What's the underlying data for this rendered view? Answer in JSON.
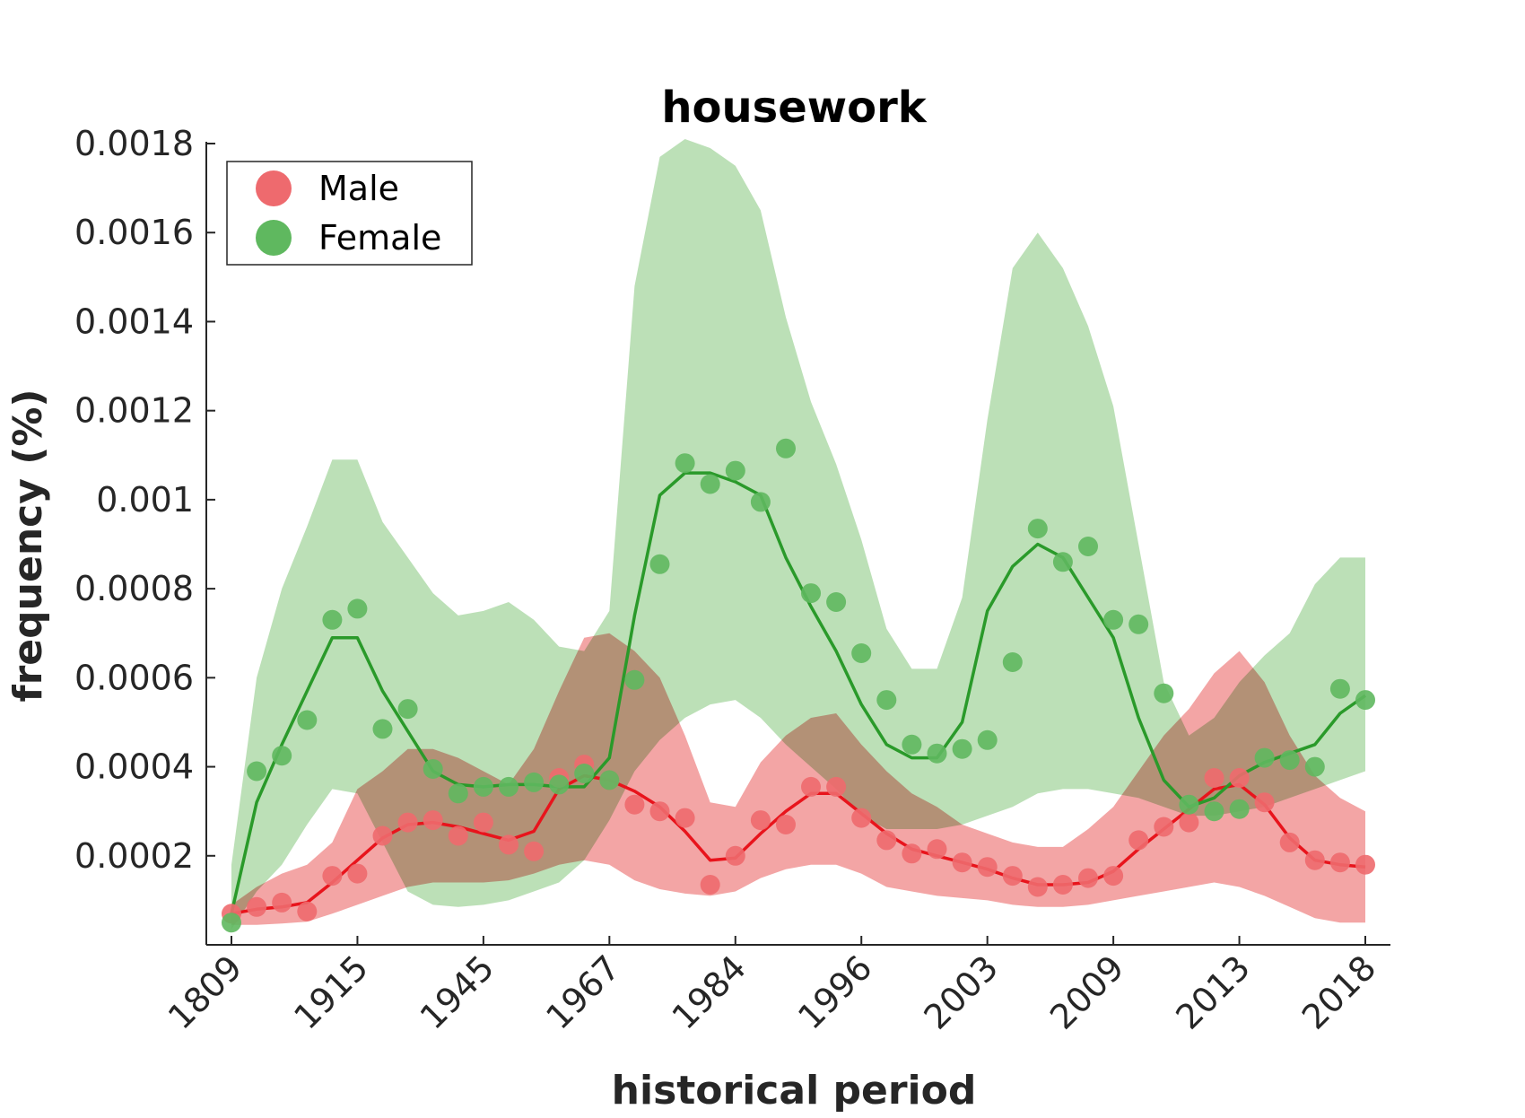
{
  "chart_data": {
    "type": "line",
    "title": "housework",
    "xlabel": "historical period",
    "ylabel": "frequency (%)",
    "ylim": [
      0,
      0.0018
    ],
    "y_ticks": [
      "0.0002",
      "0.0004",
      "0.0006",
      "0.0008",
      "0.001",
      "0.0012",
      "0.0014",
      "0.0016",
      "0.0018"
    ],
    "y_tick_values": [
      0.0002,
      0.0004,
      0.0006,
      0.0008,
      0.001,
      0.0012,
      0.0014,
      0.0016,
      0.0018
    ],
    "x_tick_labels": [
      "1809",
      "1915",
      "1945",
      "1967",
      "1984",
      "1996",
      "2003",
      "2009",
      "2013",
      "2018"
    ],
    "x_tick_indices": [
      0,
      5,
      10,
      15,
      20,
      25,
      30,
      35,
      40,
      45
    ],
    "n_points": 46,
    "legend_position": "top-left",
    "series": [
      {
        "name": "Male",
        "color": "#e8141c",
        "marker_color": "#ee6a6e",
        "band_color": "#f19999",
        "points": [
          7e-05,
          8.5e-05,
          9.5e-05,
          7.5e-05,
          0.000155,
          0.00016,
          0.000245,
          0.000275,
          0.00028,
          0.000245,
          0.000275,
          0.000225,
          0.00021,
          0.000375,
          0.000405,
          0.00037,
          0.000315,
          0.0003,
          0.000285,
          0.000135,
          0.0002,
          0.00028,
          0.00027,
          0.000355,
          0.000355,
          0.000285,
          0.000235,
          0.000205,
          0.000215,
          0.000185,
          0.000175,
          0.000155,
          0.00013,
          0.000135,
          0.00015,
          0.000155,
          0.000235,
          0.000265,
          0.000275,
          0.000375,
          0.000375,
          0.00032,
          0.00023,
          0.00019,
          0.000185,
          0.00018
        ],
        "fit": [
          7e-05,
          8e-05,
          8.5e-05,
          9.5e-05,
          0.00014,
          0.00019,
          0.00024,
          0.00027,
          0.000275,
          0.000265,
          0.00025,
          0.000235,
          0.000255,
          0.00035,
          0.00038,
          0.00037,
          0.000345,
          0.00031,
          0.000255,
          0.00019,
          0.000195,
          0.00025,
          0.0003,
          0.00034,
          0.00034,
          0.000295,
          0.00025,
          0.000215,
          0.0002,
          0.000185,
          0.00017,
          0.00015,
          0.000135,
          0.000135,
          0.00014,
          0.000165,
          0.000215,
          0.00026,
          0.000305,
          0.00035,
          0.00036,
          0.000315,
          0.00024,
          0.00019,
          0.00018,
          0.000175
        ],
        "band_upper": [
          9e-05,
          0.00013,
          0.00016,
          0.00018,
          0.00023,
          0.00035,
          0.00039,
          0.00044,
          0.00044,
          0.00042,
          0.00039,
          0.00036,
          0.00044,
          0.00057,
          0.00069,
          0.0007,
          0.00066,
          0.0006,
          0.00047,
          0.00032,
          0.00031,
          0.00041,
          0.00047,
          0.00051,
          0.00052,
          0.00045,
          0.00039,
          0.00034,
          0.00031,
          0.00027,
          0.00025,
          0.00023,
          0.00022,
          0.00022,
          0.00026,
          0.00031,
          0.00039,
          0.00047,
          0.00053,
          0.00061,
          0.00066,
          0.00059,
          0.00047,
          0.00038,
          0.00033,
          0.0003
        ],
        "band_lower": [
          4.5e-05,
          4.5e-05,
          4.8e-05,
          5.2e-05,
          7e-05,
          9e-05,
          0.00011,
          0.00013,
          0.00014,
          0.00014,
          0.00014,
          0.000145,
          0.00016,
          0.00018,
          0.00019,
          0.00018,
          0.000145,
          0.000125,
          0.000115,
          0.00011,
          0.00012,
          0.00015,
          0.00017,
          0.00018,
          0.00018,
          0.00016,
          0.00013,
          0.00012,
          0.00011,
          0.000105,
          0.0001,
          9e-05,
          8.5e-05,
          8.5e-05,
          9e-05,
          0.0001,
          0.00011,
          0.00012,
          0.00013,
          0.00014,
          0.00013,
          0.00011,
          8.5e-05,
          6e-05,
          5e-05,
          5e-05
        ]
      },
      {
        "name": "Female",
        "color": "#2a9a2a",
        "marker_color": "#5fb85f",
        "band_color": "#b0dbaa",
        "points": [
          5e-05,
          0.00039,
          0.000425,
          0.000505,
          0.00073,
          0.000755,
          0.000485,
          0.00053,
          0.000395,
          0.00034,
          0.000355,
          0.000355,
          0.000365,
          0.00036,
          0.000385,
          0.00037,
          0.000595,
          0.000855,
          0.001082,
          0.001035,
          0.001065,
          0.000995,
          0.001115,
          0.00079,
          0.00077,
          0.000655,
          0.00055,
          0.00045,
          0.00043,
          0.00044,
          0.00046,
          0.000635,
          0.000935,
          0.00086,
          0.000895,
          0.00073,
          0.00072,
          0.000565,
          0.000315,
          0.0003,
          0.000305,
          0.00042,
          0.000415,
          0.0004,
          0.000575,
          0.00055
        ],
        "fit": [
          7e-05,
          0.00032,
          0.00045,
          0.00057,
          0.00069,
          0.00069,
          0.00057,
          0.00048,
          0.00039,
          0.00036,
          0.000355,
          0.00036,
          0.00036,
          0.000355,
          0.000355,
          0.00042,
          0.00074,
          0.00101,
          0.00106,
          0.00106,
          0.00104,
          0.00101,
          0.00087,
          0.00076,
          0.00066,
          0.00054,
          0.00045,
          0.00042,
          0.00042,
          0.0005,
          0.00075,
          0.00085,
          0.0009,
          0.00087,
          0.00078,
          0.00069,
          0.00051,
          0.00037,
          0.00031,
          0.00033,
          0.00038,
          0.00041,
          0.00043,
          0.00045,
          0.00052,
          0.00056
        ],
        "band_upper": [
          0.00018,
          0.0006,
          0.0008,
          0.00094,
          0.00109,
          0.00109,
          0.00095,
          0.00087,
          0.00079,
          0.00074,
          0.00075,
          0.00077,
          0.00073,
          0.00067,
          0.00066,
          0.00075,
          0.00148,
          0.00177,
          0.00181,
          0.00179,
          0.00175,
          0.00165,
          0.00141,
          0.00122,
          0.00108,
          0.00091,
          0.00071,
          0.00062,
          0.00062,
          0.00078,
          0.00118,
          0.00152,
          0.0016,
          0.00152,
          0.00139,
          0.00121,
          0.0009,
          0.00059,
          0.00047,
          0.00051,
          0.00059,
          0.00065,
          0.0007,
          0.00081,
          0.00087,
          0.00087
        ],
        "band_lower": [
          3.5e-05,
          0.00012,
          0.00018,
          0.00027,
          0.00035,
          0.00034,
          0.00023,
          0.00012,
          9e-05,
          8.5e-05,
          9e-05,
          0.0001,
          0.00012,
          0.00014,
          0.00019,
          0.00028,
          0.00039,
          0.00046,
          0.00051,
          0.00054,
          0.00055,
          0.00051,
          0.00045,
          0.0004,
          0.00035,
          0.00029,
          0.00026,
          0.00026,
          0.00026,
          0.00027,
          0.00029,
          0.00031,
          0.00034,
          0.00035,
          0.00035,
          0.00034,
          0.00033,
          0.00031,
          0.00029,
          0.00029,
          0.0003,
          0.00031,
          0.00033,
          0.00035,
          0.00037,
          0.00039
        ]
      }
    ]
  }
}
